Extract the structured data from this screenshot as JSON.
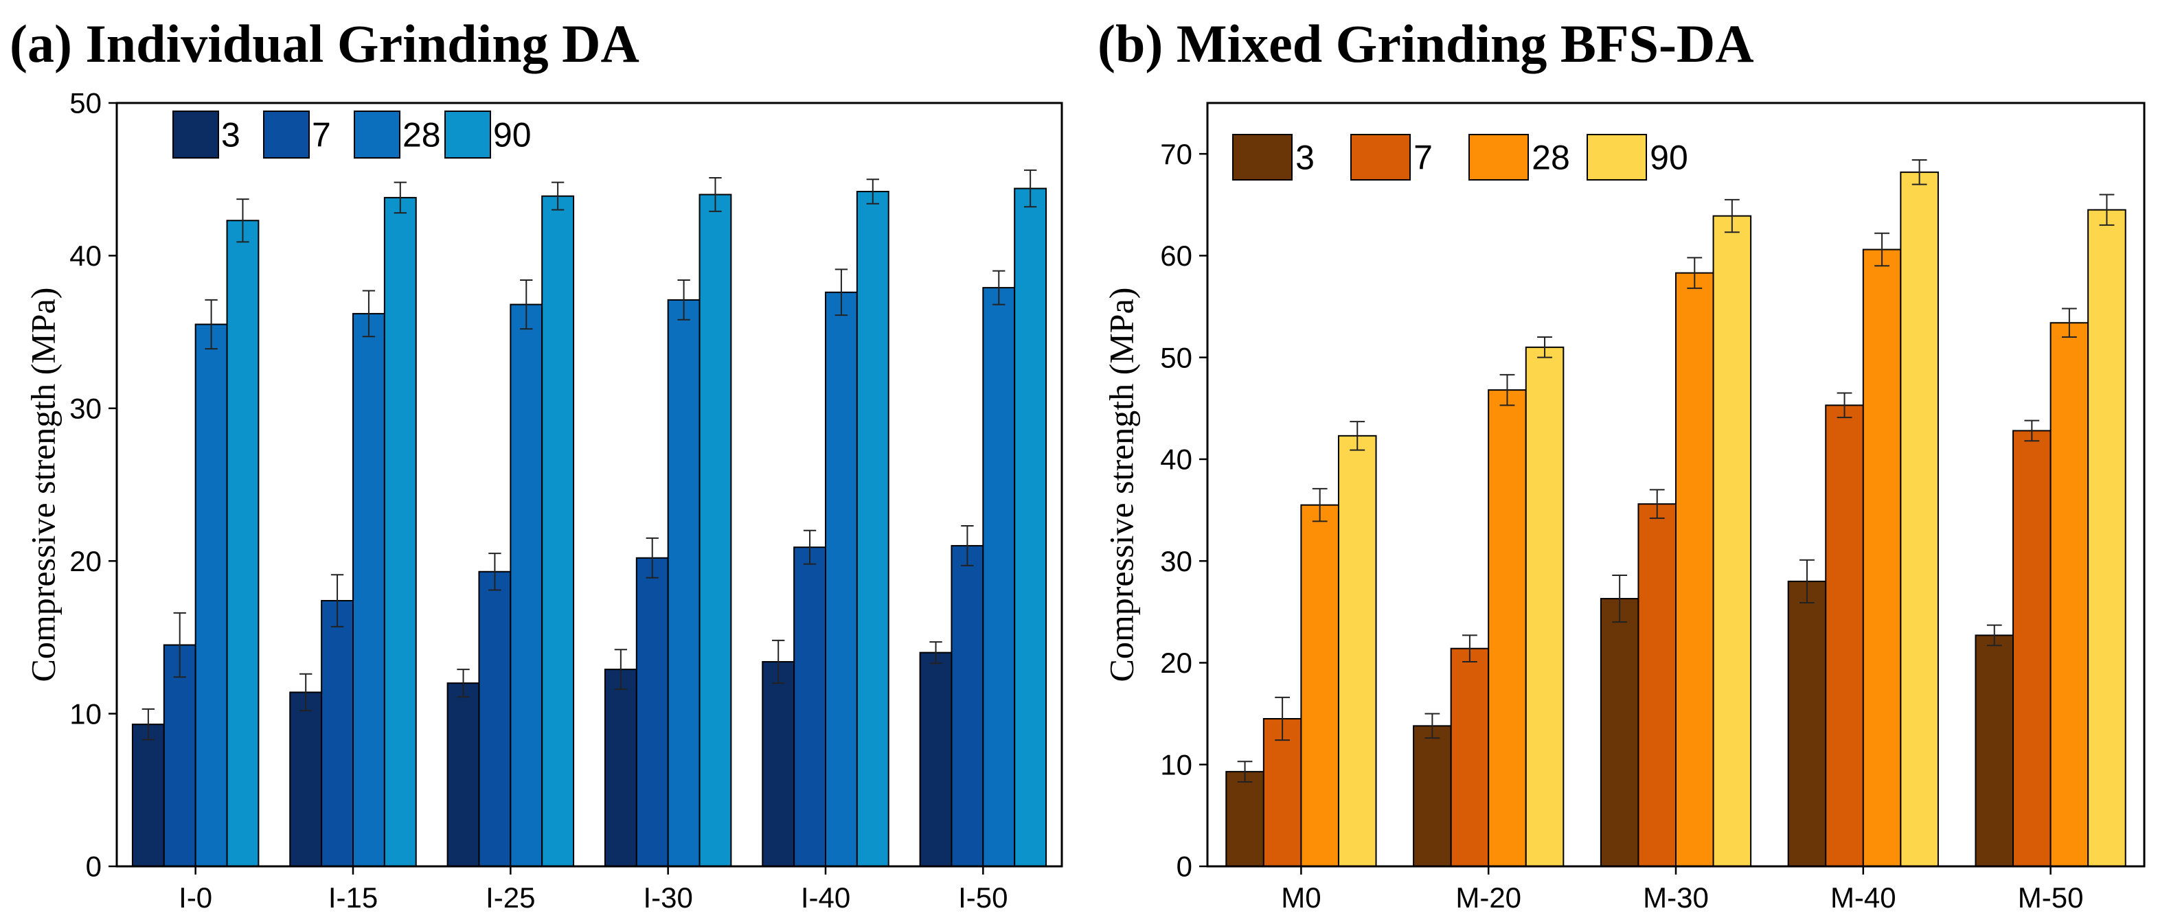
{
  "chart_data": [
    {
      "type": "bar",
      "title": "(a) Individual Grinding DA",
      "xlabel": "",
      "ylabel": "Compressive strength (MPa)",
      "ylim": [
        0,
        50
      ],
      "yticks": [
        0,
        10,
        20,
        30,
        40,
        50
      ],
      "categories": [
        "I-0",
        "I-15",
        "I-25",
        "I-30",
        "I-40",
        "I-50"
      ],
      "legend_position": "top-left",
      "series": [
        {
          "name": "3",
          "color": "#0c2c64",
          "values": [
            9.3,
            11.4,
            12.0,
            12.9,
            13.4,
            14.0
          ],
          "errors": [
            1.0,
            1.2,
            0.9,
            1.3,
            1.4,
            0.7
          ]
        },
        {
          "name": "7",
          "color": "#0a4fa0",
          "values": [
            14.5,
            17.4,
            19.3,
            20.2,
            20.9,
            21.0
          ],
          "errors": [
            2.1,
            1.7,
            1.2,
            1.3,
            1.1,
            1.3
          ]
        },
        {
          "name": "28",
          "color": "#0b6fbd",
          "values": [
            35.5,
            36.2,
            36.8,
            37.1,
            37.6,
            37.9
          ],
          "errors": [
            1.6,
            1.5,
            1.6,
            1.3,
            1.5,
            1.1
          ]
        },
        {
          "name": "90",
          "color": "#0d93cc",
          "values": [
            42.3,
            43.8,
            43.9,
            44.0,
            44.2,
            44.4
          ],
          "errors": [
            1.4,
            1.0,
            0.9,
            1.1,
            0.8,
            1.2
          ]
        }
      ]
    },
    {
      "type": "bar",
      "title": "(b) Mixed Grinding BFS-DA",
      "xlabel": "",
      "ylabel": "Compressive strength (MPa)",
      "ylim": [
        0,
        75
      ],
      "yticks": [
        0,
        10,
        20,
        30,
        40,
        50,
        60,
        70
      ],
      "categories": [
        "M0",
        "M-20",
        "M-30",
        "M-40",
        "M-50"
      ],
      "legend_position": "top-left",
      "series": [
        {
          "name": "3",
          "color": "#6b3607",
          "values": [
            9.3,
            13.8,
            26.3,
            28.0,
            22.7
          ],
          "errors": [
            1.0,
            1.2,
            2.3,
            2.1,
            1.0
          ]
        },
        {
          "name": "7",
          "color": "#d85c06",
          "values": [
            14.5,
            21.4,
            35.6,
            45.3,
            42.8
          ],
          "errors": [
            2.1,
            1.3,
            1.4,
            1.2,
            1.0
          ]
        },
        {
          "name": "28",
          "color": "#fd8f06",
          "values": [
            35.5,
            46.8,
            58.3,
            60.6,
            53.4
          ],
          "errors": [
            1.6,
            1.5,
            1.5,
            1.6,
            1.4
          ]
        },
        {
          "name": "90",
          "color": "#fed64c",
          "values": [
            42.3,
            51.0,
            63.9,
            68.2,
            64.5
          ],
          "errors": [
            1.4,
            1.0,
            1.6,
            1.2,
            1.5
          ]
        }
      ]
    }
  ]
}
